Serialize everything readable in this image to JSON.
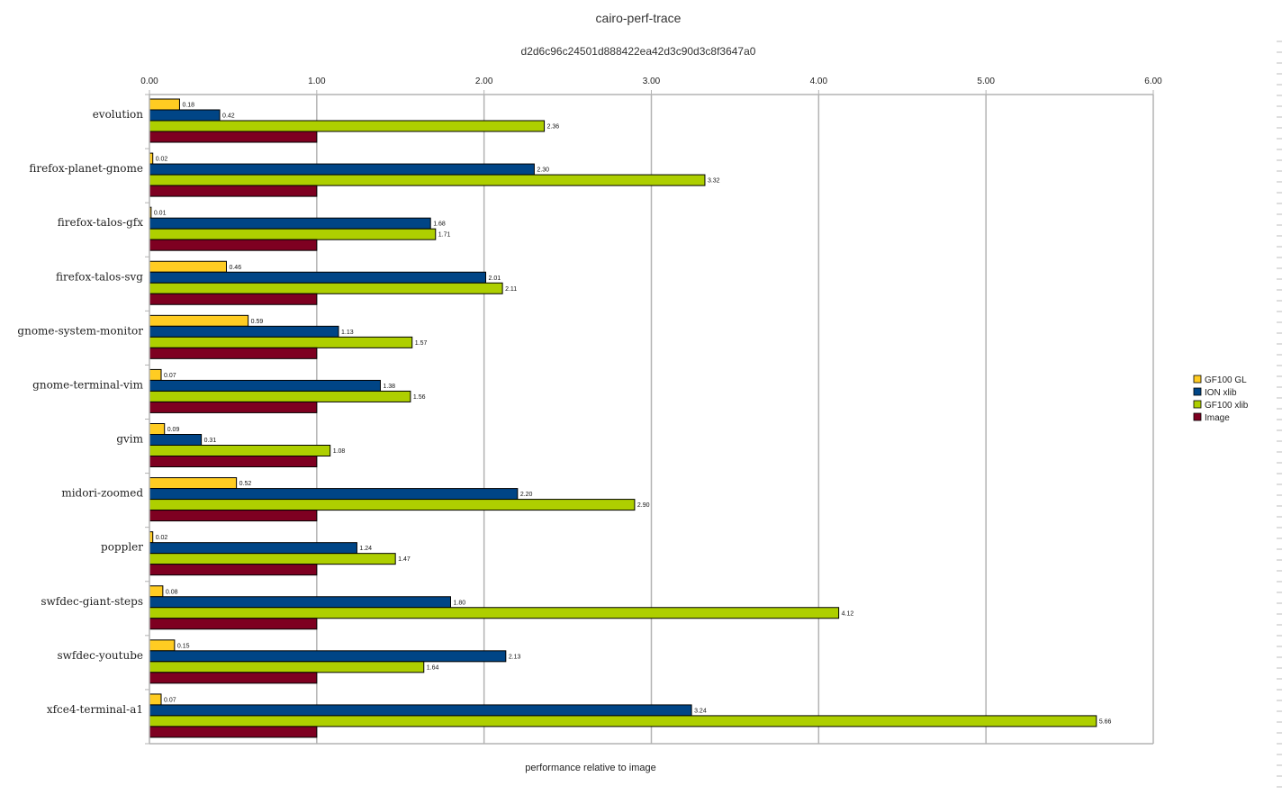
{
  "chart_data": {
    "type": "bar",
    "orientation": "horizontal",
    "title": "cairo-perf-trace",
    "subtitle": "d2d6c96c24501d888422ea42d3c90d3c8f3647a0",
    "xlabel": "performance relative to image",
    "ylabel": "",
    "xlim": [
      0,
      6
    ],
    "xticks": [
      "0.00",
      "1.00",
      "2.00",
      "3.00",
      "4.00",
      "5.00",
      "6.00"
    ],
    "grid": true,
    "legend_position": "right",
    "categories": [
      "evolution",
      "firefox-planet-gnome",
      "firefox-talos-gfx",
      "firefox-talos-svg",
      "gnome-system-monitor",
      "gnome-terminal-vim",
      "gvim",
      "midori-zoomed",
      "poppler",
      "swfdec-giant-steps",
      "swfdec-youtube",
      "xfce4-terminal-a1"
    ],
    "series": [
      {
        "name": "GF100 GL",
        "color": "#ffcc22",
        "values": [
          0.18,
          0.02,
          0.01,
          0.46,
          0.59,
          0.07,
          0.09,
          0.52,
          0.02,
          0.08,
          0.15,
          0.07
        ],
        "labels": [
          "0.18",
          "0.02",
          "0.01",
          "0.46",
          "0.59",
          "0.07",
          "0.09",
          "0.52",
          "0.02",
          "0.08",
          "0.15",
          "0.07"
        ]
      },
      {
        "name": "ION xlib",
        "color": "#004586",
        "values": [
          0.42,
          2.3,
          1.68,
          2.01,
          1.13,
          1.38,
          0.31,
          2.2,
          1.24,
          1.8,
          2.13,
          3.24
        ],
        "labels": [
          "0.42",
          "2.30",
          "1.68",
          "2.01",
          "1.13",
          "1.38",
          "0.31",
          "2.20",
          "1.24",
          "1.80",
          "2.13",
          "3.24"
        ]
      },
      {
        "name": "GF100 xlib",
        "color": "#aecf00",
        "values": [
          2.36,
          3.32,
          1.71,
          2.11,
          1.57,
          1.56,
          1.08,
          2.9,
          1.47,
          4.12,
          1.64,
          5.66
        ],
        "labels": [
          "2.36",
          "3.32",
          "1.71",
          "2.11",
          "1.57",
          "1.56",
          "1.08",
          "2.90",
          "1.47",
          "4.12",
          "1.64",
          "5.66"
        ]
      },
      {
        "name": "Image",
        "color": "#7e0021",
        "values": [
          1,
          1,
          1,
          1,
          1,
          1,
          1,
          1,
          1,
          1,
          1,
          1
        ],
        "labels": []
      }
    ]
  }
}
